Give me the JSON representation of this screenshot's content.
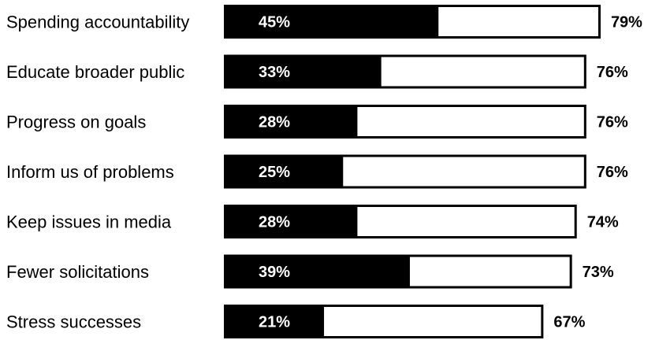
{
  "chart_data": {
    "type": "bar",
    "orientation": "horizontal",
    "categories": [
      "Spending accountability",
      "Educate broader public",
      "Progress on goals",
      "Inform us of problems",
      "Keep issues in media",
      "Fewer solicitations",
      "Stress successes"
    ],
    "series": [
      {
        "values": [
          45,
          33,
          28,
          25,
          28,
          39,
          21
        ],
        "labels": [
          "45%",
          "33%",
          "28%",
          "25%",
          "28%",
          "39%",
          "21%"
        ],
        "color": "#000000"
      },
      {
        "values": [
          79,
          76,
          76,
          76,
          74,
          73,
          67
        ],
        "labels": [
          "79%",
          "76%",
          "76%",
          "76%",
          "74%",
          "73%",
          "67%"
        ],
        "color": "#ffffff"
      }
    ],
    "xlim": [
      0,
      100
    ],
    "grid": false,
    "legend": "none"
  }
}
